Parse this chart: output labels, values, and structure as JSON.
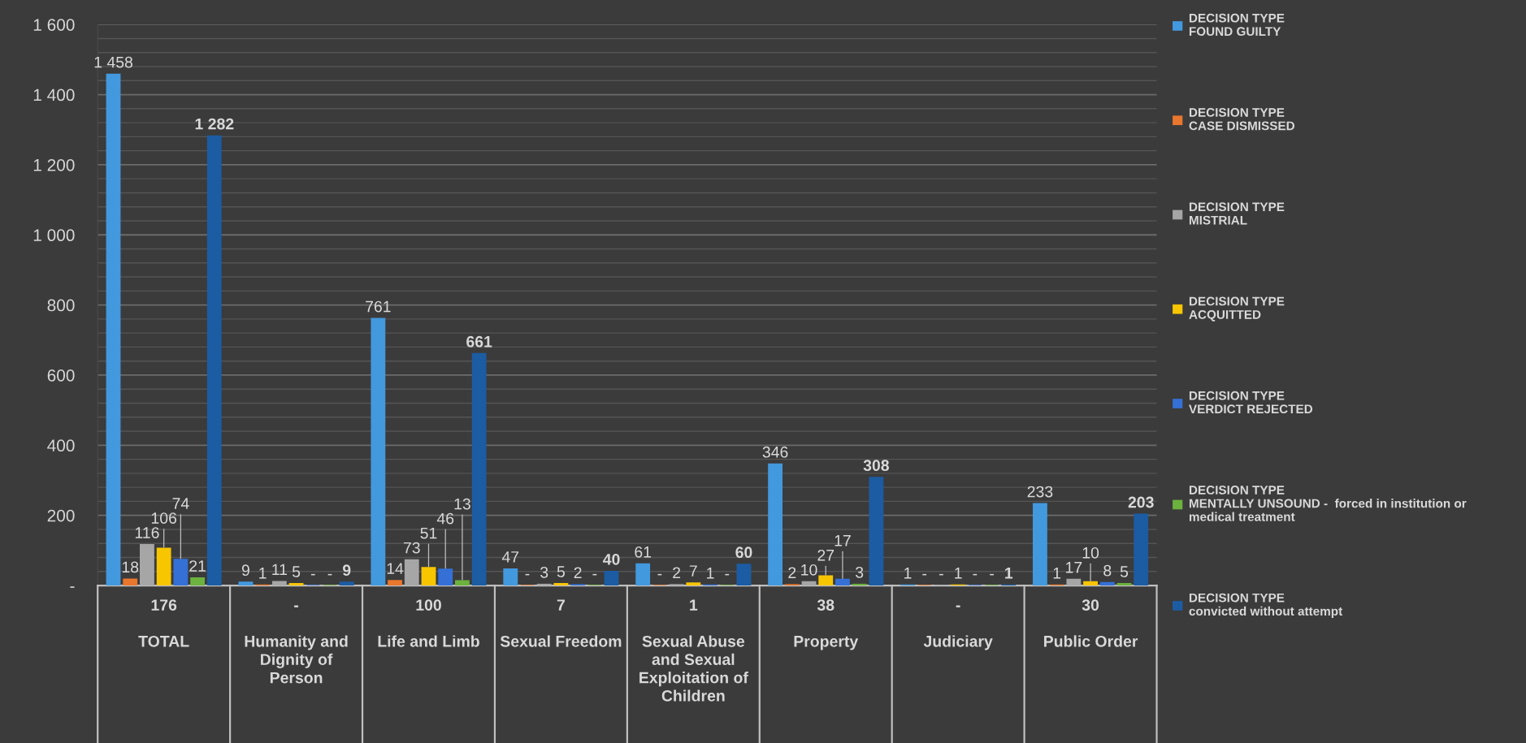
{
  "chart_data": {
    "type": "bar",
    "categories": [
      "176\n\nTOTAL",
      "-\n\nHumanity and\nDignity of\nPerson",
      "100\n\nLife and Limb",
      "7\n\nSexual Freedom",
      "1\n\nSexual Abuse\nand Sexual\nExploitation of\nChildren",
      "38\n\nProperty",
      "-\n\nJudiciary",
      "30\n\nPublic Order"
    ],
    "series": [
      {
        "name": "DECISION TYPE\nFOUND GUILTY",
        "color": "#4399de",
        "values": [
          1458,
          9,
          761,
          47,
          61,
          346,
          1,
          233
        ],
        "value_labels": [
          "1 458",
          "9",
          "761",
          "47",
          "61",
          "346",
          "1",
          "233"
        ]
      },
      {
        "name": "DECISION TYPE\nCASE DISMISSED",
        "color": "#e9772e",
        "values": [
          18,
          1,
          14,
          0,
          0,
          2,
          0,
          1
        ],
        "value_labels": [
          "18",
          "1",
          "14",
          "-",
          "-",
          "2",
          "-",
          "1"
        ]
      },
      {
        "name": "DECISION TYPE\nMISTRIAL",
        "color": "#a6a6a6",
        "values": [
          116,
          11,
          73,
          3,
          2,
          10,
          0,
          17
        ],
        "value_labels": [
          "116",
          "11",
          "73",
          "3",
          "2",
          "10",
          "-",
          "17"
        ]
      },
      {
        "name": "DECISION TYPE\nACQUITTED",
        "color": "#f7c600",
        "values": [
          106,
          5,
          51,
          5,
          7,
          27,
          1,
          10
        ],
        "value_labels": [
          "106",
          "5",
          "51",
          "5",
          "7",
          "27",
          "1",
          "10"
        ]
      },
      {
        "name": "DECISION TYPE\nVERDICT REJECTED",
        "color": "#3470d6",
        "values": [
          74,
          0,
          46,
          2,
          1,
          17,
          0,
          8
        ],
        "value_labels": [
          "74",
          "-",
          "46",
          "2",
          "1",
          "17",
          "-",
          "8"
        ]
      },
      {
        "name": "DECISION TYPE\nMENTALLY UNSOUND -  forced in institution or\nmedical treatment",
        "color": "#6cb23e",
        "values": [
          21,
          0,
          13,
          0,
          0,
          3,
          0,
          5
        ],
        "value_labels": [
          "21",
          "-",
          "13",
          "-",
          "-",
          "3",
          "-",
          "5"
        ]
      },
      {
        "name": "DECISION TYPE\nconvicted without attempt",
        "color": "#1c5ca3",
        "values": [
          1282,
          9,
          661,
          40,
          60,
          308,
          1,
          203
        ],
        "value_labels": [
          "1 282",
          "9",
          "661",
          "40",
          "60",
          "308",
          "1",
          "203"
        ]
      }
    ],
    "ylim": [
      0,
      1600
    ],
    "yticks": [
      {
        "value": 0,
        "label": "-"
      },
      {
        "value": 40,
        "label": null
      },
      {
        "value": 80,
        "label": null
      },
      {
        "value": 120,
        "label": null
      },
      {
        "value": 160,
        "label": null
      },
      200,
      {
        "value": 240,
        "label": null
      },
      {
        "value": 280,
        "label": null
      },
      {
        "value": 320,
        "label": null
      },
      {
        "value": 360,
        "label": null
      },
      400,
      {
        "value": 440,
        "label": null
      },
      {
        "value": 480,
        "label": null
      },
      {
        "value": 520,
        "label": null
      },
      {
        "value": 560,
        "label": null
      },
      600,
      {
        "value": 640,
        "label": null
      },
      {
        "value": 680,
        "label": null
      },
      {
        "value": 720,
        "label": null
      },
      {
        "value": 760,
        "label": null
      },
      800,
      {
        "value": 840,
        "label": null
      },
      {
        "value": 880,
        "label": null
      },
      {
        "value": 920,
        "label": null
      },
      {
        "value": 960,
        "label": null
      },
      {
        "value": 1000,
        "label": "1 000"
      },
      {
        "value": 1040,
        "label": null
      },
      {
        "value": 1080,
        "label": null
      },
      {
        "value": 1120,
        "label": null
      },
      {
        "value": 1160,
        "label": null
      },
      {
        "value": 1200,
        "label": "1 200"
      },
      {
        "value": 1240,
        "label": null
      },
      {
        "value": 1280,
        "label": null
      },
      {
        "value": 1320,
        "label": null
      },
      {
        "value": 1360,
        "label": null
      },
      {
        "value": 1400,
        "label": "1 400"
      },
      {
        "value": 1440,
        "label": null
      },
      {
        "value": 1480,
        "label": null
      },
      {
        "value": 1520,
        "label": null
      },
      {
        "value": 1560,
        "label": null
      },
      {
        "value": 1600,
        "label": "1 600"
      }
    ],
    "grid": "y",
    "legend": "right"
  }
}
